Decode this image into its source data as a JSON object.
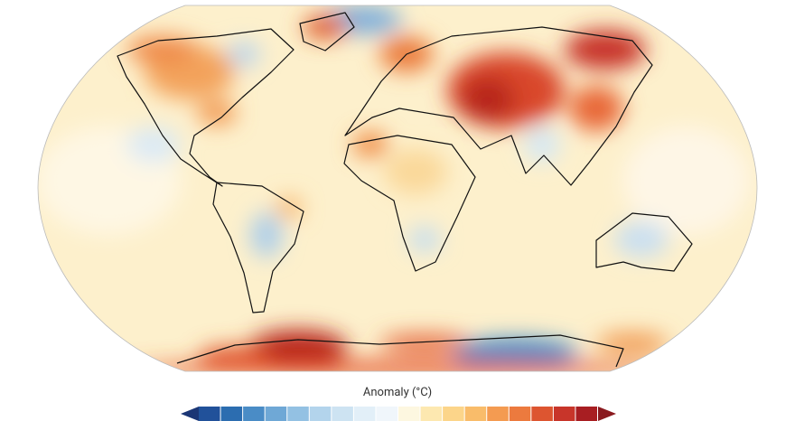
{
  "colorbar": {
    "label": "Anomaly (°C)",
    "colors": [
      "#1b3675",
      "#21519a",
      "#2c6db0",
      "#4a8cc6",
      "#6fa8d6",
      "#93c1e3",
      "#b3d4ec",
      "#cde3f2",
      "#e2eff8",
      "#f0f6fb",
      "#fdf7e0",
      "#fde8b0",
      "#fcd58a",
      "#f9bc6a",
      "#f49b51",
      "#ec7a3e",
      "#dd5530",
      "#c8352a",
      "#a81e22",
      "#8a1a1f"
    ]
  }
}
